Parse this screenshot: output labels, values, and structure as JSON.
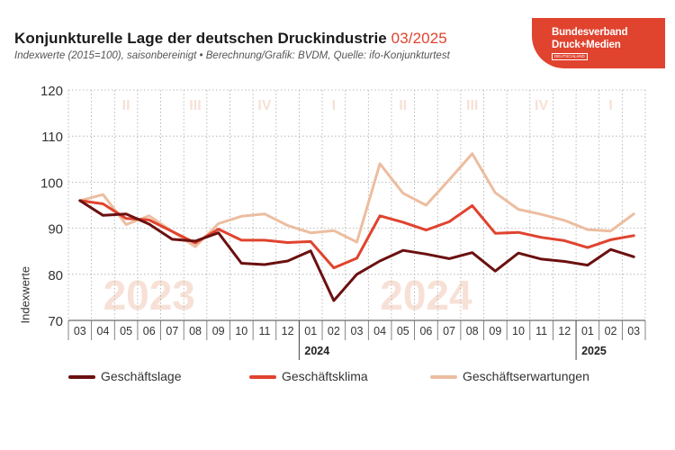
{
  "header": {
    "title": "Konjunkturelle Lage der deutschen Druckindustrie",
    "title_date": "03/2025",
    "subtitle": "Indexwerte (2015=100), saisonbereinigt • Berechnung/Grafik: BVDM, Quelle: ifo-Konjunkturtest"
  },
  "logo": {
    "line1": "Bundesverband",
    "line2": "Druck+Medien",
    "line3": "DEUTSCHLAND",
    "color": "#e0432e"
  },
  "chart_data": {
    "type": "line",
    "ylabel": "Indexwerte",
    "ylim": [
      70,
      120
    ],
    "yticks": [
      70,
      80,
      90,
      100,
      110,
      120
    ],
    "grid": true,
    "x": [
      "03",
      "04",
      "05",
      "06",
      "07",
      "08",
      "09",
      "10",
      "11",
      "12",
      "01",
      "02",
      "03",
      "04",
      "05",
      "06",
      "07",
      "08",
      "09",
      "10",
      "11",
      "12",
      "01",
      "02",
      "03"
    ],
    "year_labels": [
      {
        "text": "2024",
        "at_index": 10
      },
      {
        "text": "2025",
        "at_index": 22
      }
    ],
    "background_years": [
      {
        "text": "2023",
        "at_index": 3
      },
      {
        "text": "2024",
        "at_index": 15
      }
    ],
    "quarter_labels": [
      {
        "text": "II",
        "at_index": 2
      },
      {
        "text": "III",
        "at_index": 5
      },
      {
        "text": "IV",
        "at_index": 8
      },
      {
        "text": "I",
        "at_index": 11
      },
      {
        "text": "II",
        "at_index": 14
      },
      {
        "text": "III",
        "at_index": 17
      },
      {
        "text": "IV",
        "at_index": 20
      },
      {
        "text": "I",
        "at_index": 23
      }
    ],
    "series": [
      {
        "name": "Geschäftserwartungen",
        "color": "#ecbda0",
        "values": [
          96.0,
          97.3,
          90.8,
          92.7,
          89.3,
          86.0,
          91.0,
          92.6,
          93.1,
          90.6,
          89.0,
          89.5,
          87.0,
          104.0,
          97.6,
          95.0,
          100.5,
          106.2,
          97.7,
          94.1,
          93.0,
          91.7,
          89.7,
          89.4,
          93.1
        ]
      },
      {
        "name": "Geschäftsklima",
        "color": "#e0432e",
        "values": [
          96.0,
          95.3,
          92.1,
          91.8,
          89.3,
          86.8,
          89.8,
          87.4,
          87.4,
          86.9,
          87.1,
          81.4,
          83.5,
          92.7,
          91.3,
          89.6,
          91.4,
          94.9,
          88.9,
          89.1,
          88.0,
          87.3,
          85.8,
          87.5,
          88.4
        ]
      },
      {
        "name": "Geschäftslage",
        "color": "#6b1010",
        "values": [
          96.0,
          92.8,
          93.1,
          90.9,
          87.6,
          87.2,
          89.0,
          82.4,
          82.1,
          82.9,
          85.1,
          74.3,
          80.0,
          82.9,
          85.2,
          84.4,
          83.4,
          84.7,
          80.7,
          84.6,
          83.3,
          82.8,
          82.0,
          85.4,
          83.8
        ]
      }
    ],
    "legend": {
      "placement": "bottom",
      "order": [
        "Geschäftslage",
        "Geschäftsklima",
        "Geschäftserwartungen"
      ]
    }
  }
}
